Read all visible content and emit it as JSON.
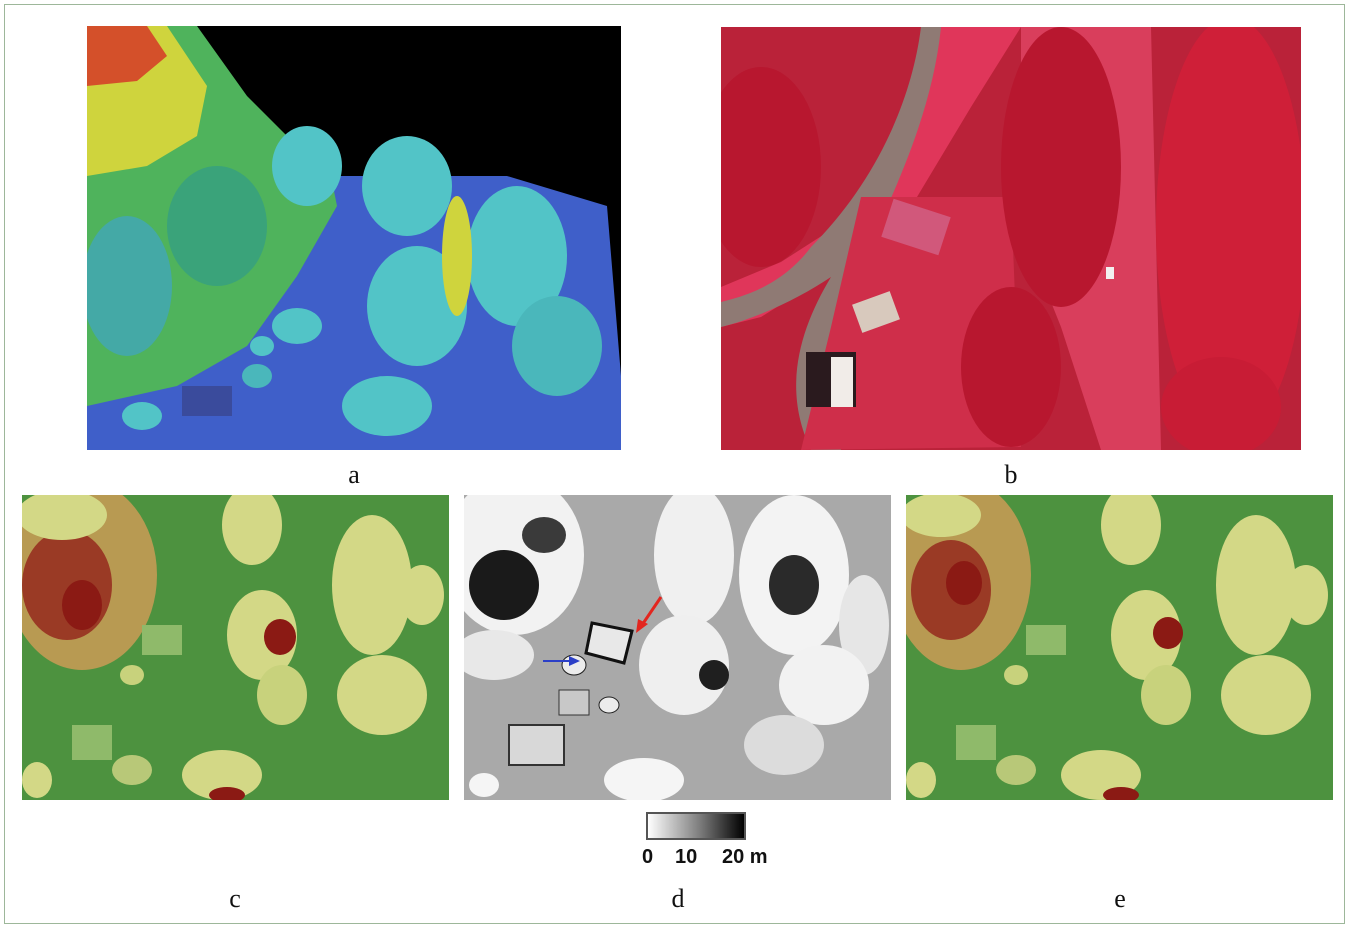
{
  "panels": {
    "a": {
      "caption": "a"
    },
    "b": {
      "caption": "b"
    },
    "c": {
      "caption": "c"
    },
    "d": {
      "caption": "d"
    },
    "e": {
      "caption": "e"
    }
  },
  "scale": {
    "tick_0": "0",
    "tick_10": "10",
    "tick_20": "20 m"
  },
  "colors": {
    "lidar_background": "#000000",
    "ground_blue": "#3f5fc9",
    "canopy_cyan": "#52c4c7",
    "canopy_green": "#3db34a",
    "canopy_yellow": "#e3e23a",
    "canopy_red": "#d2401f",
    "cir_vegetation": "#c8213a",
    "cir_road": "#8f7a74",
    "chm_low": "#3f8a3a",
    "chm_mid": "#d3d886",
    "chm_high": "#8b1a14",
    "arrow_red": "#e3261f",
    "arrow_blue": "#2b3fc7"
  }
}
